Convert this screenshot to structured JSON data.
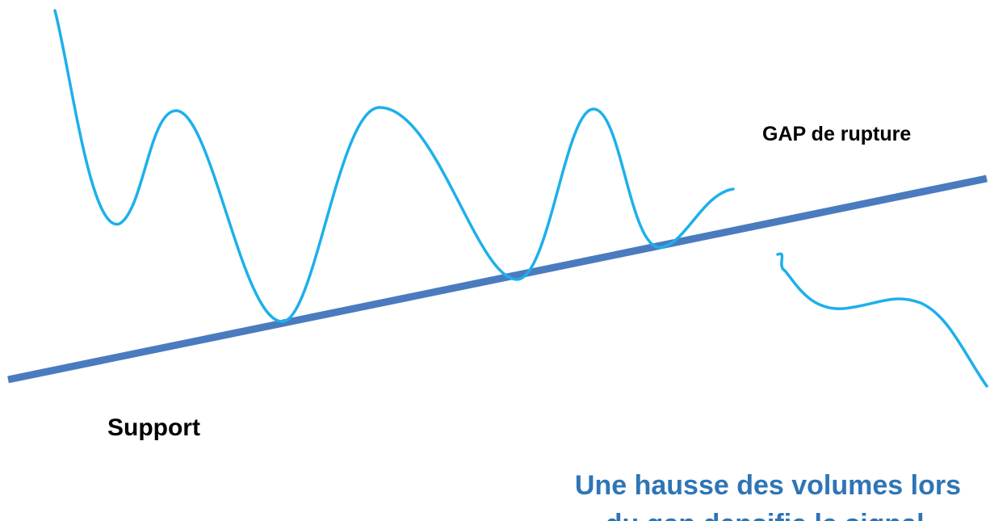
{
  "labels": {
    "gap": "GAP de rupture",
    "support": "Support",
    "note_line1": "Une hausse des volumes lors",
    "note_line2": "du gap densifie le signal."
  },
  "colors": {
    "support_line": "#4a7bbf",
    "price_curve": "#1db0ea",
    "note_text": "#2e75b6",
    "label_text": "#000000"
  }
}
